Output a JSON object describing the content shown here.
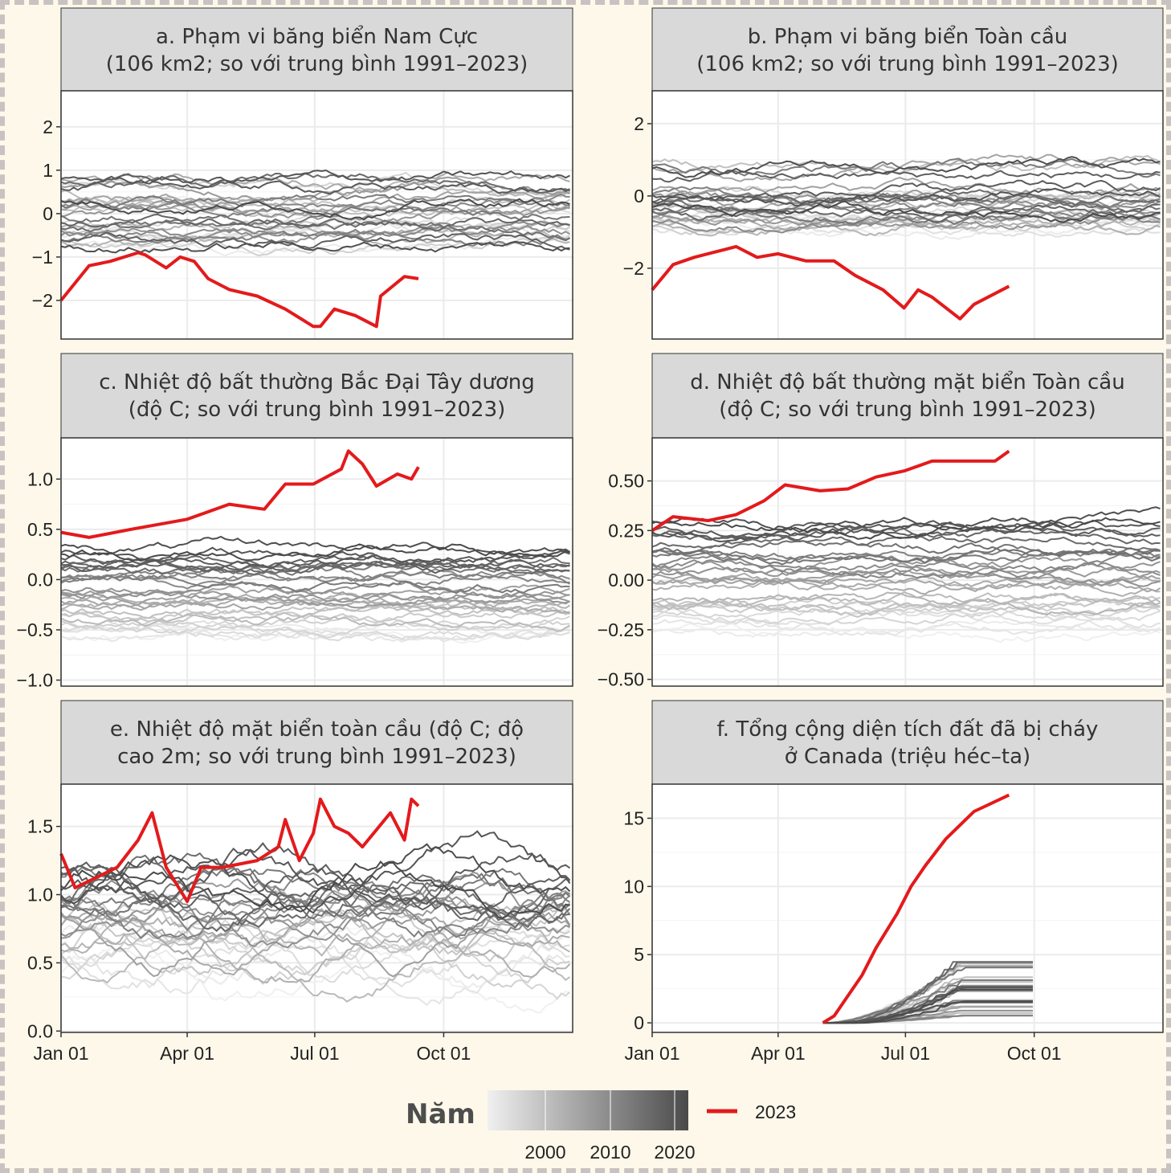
{
  "chart_data": [
    {
      "id": "a",
      "type": "line",
      "title": [
        "a. Phạm vi băng biển Nam Cực",
        "(106 km2; so với trung bình 1991–2023)"
      ],
      "ylim": [
        -2.89,
        2.83
      ],
      "yticks": [
        2,
        1,
        0,
        -1,
        -2
      ],
      "ytick_labels": [
        "2",
        "1",
        "0",
        "−1",
        "−2"
      ],
      "mode": "walk",
      "spread": 1.1,
      "red": [
        [
          0,
          -2
        ],
        [
          10,
          -1.6
        ],
        [
          20,
          -1.2
        ],
        [
          35,
          -1.1
        ],
        [
          55,
          -0.9
        ],
        [
          60,
          -0.95
        ],
        [
          65,
          -1.05
        ],
        [
          75,
          -1.25
        ],
        [
          85,
          -1.0
        ],
        [
          95,
          -1.1
        ],
        [
          105,
          -1.5
        ],
        [
          120,
          -1.75
        ],
        [
          140,
          -1.9
        ],
        [
          160,
          -2.2
        ],
        [
          180,
          -2.6
        ],
        [
          185,
          -2.6
        ],
        [
          195,
          -2.2
        ],
        [
          210,
          -2.35
        ],
        [
          225,
          -2.6
        ],
        [
          228,
          -1.9
        ],
        [
          245,
          -1.45
        ],
        [
          255,
          -1.5
        ]
      ]
    },
    {
      "id": "b",
      "type": "line",
      "title": [
        "b. Phạm vi băng biển Toàn cầu",
        "(106 km2; so với trung bình 1991–2023)"
      ],
      "ylim": [
        -3.96,
        2.91
      ],
      "yticks": [
        2,
        0,
        -2
      ],
      "ytick_labels": [
        "2",
        "0",
        "−2"
      ],
      "mode": "walk",
      "spread": 1.3,
      "red": [
        [
          0,
          -2.6
        ],
        [
          15,
          -1.9
        ],
        [
          30,
          -1.7
        ],
        [
          50,
          -1.5
        ],
        [
          60,
          -1.4
        ],
        [
          75,
          -1.7
        ],
        [
          90,
          -1.6
        ],
        [
          110,
          -1.8
        ],
        [
          130,
          -1.8
        ],
        [
          145,
          -2.2
        ],
        [
          165,
          -2.6
        ],
        [
          180,
          -3.1
        ],
        [
          190,
          -2.6
        ],
        [
          200,
          -2.8
        ],
        [
          220,
          -3.4
        ],
        [
          230,
          -3.0
        ],
        [
          255,
          -2.5
        ]
      ]
    },
    {
      "id": "c",
      "type": "line",
      "title": [
        "c. Nhiệt độ bất thường Bắc Đại Tây dương",
        "(độ C; so với trung bình 1991–2023)"
      ],
      "ylim": [
        -1.06,
        1.41
      ],
      "yticks": [
        1,
        0.5,
        0,
        -0.5,
        -1
      ],
      "ytick_labels": [
        "1.0",
        "0.5",
        "0.0",
        "−0.5",
        "−1.0"
      ],
      "mode": "trend",
      "low": -0.6,
      "high": 0.3,
      "noise": 0.12,
      "red": [
        [
          0,
          0.47
        ],
        [
          20,
          0.42
        ],
        [
          50,
          0.5
        ],
        [
          90,
          0.6
        ],
        [
          120,
          0.75
        ],
        [
          145,
          0.7
        ],
        [
          160,
          0.95
        ],
        [
          180,
          0.95
        ],
        [
          200,
          1.1
        ],
        [
          205,
          1.28
        ],
        [
          215,
          1.15
        ],
        [
          225,
          0.93
        ],
        [
          240,
          1.05
        ],
        [
          250,
          1.0
        ],
        [
          255,
          1.12
        ]
      ]
    },
    {
      "id": "d",
      "type": "line",
      "title": [
        "d. Nhiệt độ bất thường mặt biển Toàn cầu",
        "(độ C; so với trung bình 1991–2023)"
      ],
      "ylim": [
        -0.534,
        0.717
      ],
      "yticks": [
        0.5,
        0.25,
        0,
        -0.25,
        -0.5
      ],
      "ytick_labels": [
        "0.50",
        "0.25",
        "0.00",
        "−0.25",
        "−0.50"
      ],
      "mode": "trend",
      "low": -0.28,
      "high": 0.3,
      "noise": 0.06,
      "red": [
        [
          0,
          0.25
        ],
        [
          15,
          0.32
        ],
        [
          40,
          0.3
        ],
        [
          60,
          0.33
        ],
        [
          80,
          0.4
        ],
        [
          95,
          0.48
        ],
        [
          120,
          0.45
        ],
        [
          140,
          0.46
        ],
        [
          160,
          0.52
        ],
        [
          180,
          0.55
        ],
        [
          200,
          0.6
        ],
        [
          220,
          0.6
        ],
        [
          245,
          0.6
        ],
        [
          255,
          0.65
        ]
      ]
    },
    {
      "id": "e",
      "type": "line",
      "title": [
        "e. Nhiệt độ mặt biển toàn cầu (độ C; độ",
        "cao 2m; so với trung bình 1991–2023)"
      ],
      "ylim": [
        -0.01,
        1.81
      ],
      "yticks": [
        1.5,
        1,
        0.5,
        0
      ],
      "ytick_labels": [
        "1.5",
        "1.0",
        "0.5",
        "0.0"
      ],
      "mode": "trend",
      "low": 0.5,
      "high": 1.15,
      "noise": 0.18,
      "season": 0.15,
      "red": [
        [
          0,
          1.3
        ],
        [
          10,
          1.05
        ],
        [
          20,
          1.1
        ],
        [
          40,
          1.2
        ],
        [
          55,
          1.4
        ],
        [
          65,
          1.6
        ],
        [
          75,
          1.2
        ],
        [
          90,
          0.95
        ],
        [
          100,
          1.2
        ],
        [
          115,
          1.2
        ],
        [
          140,
          1.25
        ],
        [
          155,
          1.35
        ],
        [
          160,
          1.55
        ],
        [
          170,
          1.25
        ],
        [
          180,
          1.45
        ],
        [
          185,
          1.7
        ],
        [
          195,
          1.5
        ],
        [
          205,
          1.45
        ],
        [
          215,
          1.35
        ],
        [
          235,
          1.6
        ],
        [
          245,
          1.4
        ],
        [
          250,
          1.7
        ],
        [
          255,
          1.65
        ]
      ]
    },
    {
      "id": "f",
      "type": "line",
      "title": [
        "f. Tổng cộng diện tích đất đã bị cháy",
        "ở Canada (triệu héc–ta)"
      ],
      "ylim": [
        -0.7,
        17.5
      ],
      "yticks": [
        15,
        10,
        5,
        0
      ],
      "ytick_labels": [
        "15",
        "10",
        "5",
        "0"
      ],
      "mode": "cumulative",
      "red": [
        [
          122,
          0
        ],
        [
          130,
          0.5
        ],
        [
          140,
          2
        ],
        [
          150,
          3.5
        ],
        [
          160,
          5.5
        ],
        [
          175,
          8
        ],
        [
          185,
          10
        ],
        [
          195,
          11.5
        ],
        [
          210,
          13.5
        ],
        [
          230,
          15.5
        ],
        [
          255,
          16.7
        ]
      ]
    }
  ],
  "x_axis": {
    "range_days": [
      0,
      365
    ],
    "ticks": [
      0,
      90,
      181,
      273
    ],
    "tick_labels": [
      "Jan 01",
      "Apr 01",
      "Jul 01",
      "Oct 01"
    ]
  },
  "years": {
    "from": 1991,
    "to": 2022
  },
  "legend": {
    "title": "Năm",
    "ticks": [
      "2000",
      "2010",
      "2020"
    ],
    "highlight_label": "2023",
    "highlight_color": "#e31a1c",
    "gradient": [
      "#f0f0f0",
      "#4a4a4a"
    ]
  }
}
